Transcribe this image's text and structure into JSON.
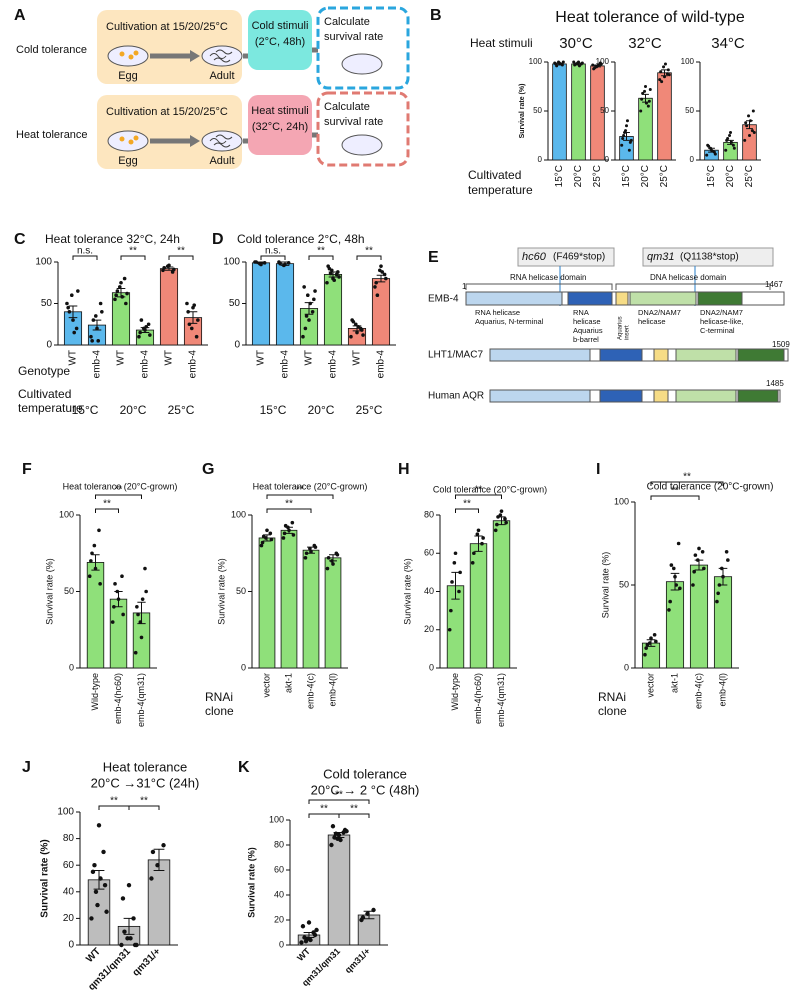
{
  "panel_a": {
    "letter": "A",
    "rows": [
      {
        "label": "Cold tolerance",
        "cultivation": "Cultivation at 15/20/25°C",
        "egg": "Egg",
        "adult": "Adult",
        "stimulus": [
          "Cold stimuli",
          "(2°C, 48h)"
        ],
        "result": [
          "Calculate",
          "survival rate"
        ]
      },
      {
        "label": "Heat tolerance",
        "cultivation": "Cultivation at 15/20/25°C",
        "egg": "Egg",
        "adult": "Adult",
        "stimulus": [
          "Heat stimuli",
          "(32°C, 24h)"
        ],
        "result": [
          "Calculate",
          "survival rate"
        ]
      }
    ]
  },
  "panel_b": {
    "letter": "B",
    "title": "Heat tolerance of wild-type",
    "row_label": "Heat stimuli",
    "x_label": [
      "Cultivated",
      "temperature"
    ]
  },
  "panel_e": {
    "letter": "E",
    "mutations": [
      {
        "allele": "hc60",
        "change": "(F469*stop)"
      },
      {
        "allele": "qm31",
        "change": "(Q1138*stop)"
      }
    ],
    "domains_header": [
      "RNA helicase domain",
      "DNA helicase domain"
    ],
    "proteins": [
      {
        "name": "EMB-4",
        "start": "1",
        "end": "1467"
      },
      {
        "name": "LHT1/MAC7",
        "end": "1509"
      },
      {
        "name": "Human AQR",
        "end": "1485"
      }
    ],
    "domain_labels": [
      [
        "RNA helicase",
        "Aquarius, N-terminal"
      ],
      [
        "RNA",
        "helicase",
        "Aquarius",
        "b-barrel"
      ],
      [
        "Aquarius",
        "insert"
      ],
      [
        "DNA2/NAM7",
        "helicase"
      ],
      [
        "DNA2/NAM7",
        "helicase-like,",
        "C-terminal"
      ]
    ]
  },
  "chart_data": [
    {
      "type": "bar",
      "title": "30°C",
      "ylabel": "Survival rate (%)",
      "categories": [
        "15°C",
        "20°C",
        "25°C"
      ],
      "colors": [
        "#5bb8ec",
        "#8fe07a",
        "#f08878"
      ],
      "values": [
        98,
        98,
        96
      ],
      "errors": [
        1,
        1,
        1
      ],
      "points": [
        [
          99,
          100,
          97,
          98,
          99,
          100,
          96,
          98
        ],
        [
          100,
          99,
          98,
          97,
          100,
          99,
          98,
          96
        ],
        [
          97,
          95,
          99,
          93,
          96,
          98,
          94,
          97
        ]
      ],
      "ylim": [
        0,
        100
      ],
      "yticks": [
        0,
        50,
        100
      ]
    },
    {
      "type": "bar",
      "title": "32°C",
      "categories": [
        "15°C",
        "20°C",
        "25°C"
      ],
      "colors": [
        "#5bb8ec",
        "#8fe07a",
        "#f08878"
      ],
      "values": [
        24,
        63,
        89
      ],
      "errors": [
        4,
        4,
        3
      ],
      "points": [
        [
          15,
          30,
          10,
          22,
          35,
          18,
          25,
          40,
          20,
          28
        ],
        [
          50,
          70,
          55,
          62,
          75,
          60,
          68,
          58,
          72
        ],
        [
          82,
          95,
          88,
          90,
          85,
          92,
          80,
          98,
          87
        ]
      ],
      "ylim": [
        0,
        100
      ],
      "yticks": [
        0,
        50,
        100
      ]
    },
    {
      "type": "bar",
      "title": "34°C",
      "categories": [
        "15°C",
        "20°C",
        "25°C"
      ],
      "colors": [
        "#5bb8ec",
        "#8fe07a",
        "#f08878"
      ],
      "values": [
        10,
        18,
        36
      ],
      "errors": [
        2,
        2,
        4
      ],
      "points": [
        [
          5,
          12,
          8,
          15,
          10,
          6,
          14,
          9
        ],
        [
          10,
          25,
          15,
          20,
          28,
          12,
          22,
          18
        ],
        [
          20,
          45,
          30,
          38,
          25,
          50,
          35,
          40,
          28
        ]
      ],
      "ylim": [
        0,
        100
      ],
      "yticks": [
        0,
        50,
        100
      ]
    },
    {
      "type": "bar",
      "letter": "C",
      "title": "Heat tolerance 32°C, 24h",
      "categories": [
        "WT",
        "emb-4",
        "WT",
        "emb-4",
        "WT",
        "emb-4"
      ],
      "colors": [
        "#5bb8ec",
        "#5bb8ec",
        "#8fe07a",
        "#8fe07a",
        "#f08878",
        "#f08878"
      ],
      "values": [
        40,
        24,
        63,
        18,
        92,
        33
      ],
      "errors": [
        7,
        6,
        5,
        3,
        2,
        7
      ],
      "points": [
        [
          50,
          60,
          20,
          45,
          30,
          65,
          40,
          15
        ],
        [
          10,
          35,
          50,
          5,
          20,
          40,
          30,
          5
        ],
        [
          55,
          70,
          80,
          60,
          75,
          50,
          65,
          58,
          62
        ],
        [
          10,
          20,
          25,
          15,
          18,
          12,
          30,
          22
        ],
        [
          90,
          95,
          88,
          93,
          96,
          91
        ],
        [
          50,
          20,
          10,
          40,
          45,
          30,
          25,
          48
        ]
      ],
      "ylim": [
        0,
        100
      ],
      "yticks": [
        0,
        50,
        100
      ],
      "sig": [
        {
          "span": [
            0,
            1
          ],
          "label": "n.s."
        },
        {
          "span": [
            2,
            3
          ],
          "label": "**"
        },
        {
          "span": [
            4,
            5
          ],
          "label": "**"
        }
      ],
      "groups": [
        {
          "label": "15°C",
          "span": [
            0,
            1
          ]
        },
        {
          "label": "20°C",
          "span": [
            2,
            3
          ]
        },
        {
          "label": "25°C",
          "span": [
            4,
            5
          ]
        }
      ],
      "row_labels": [
        "Genotype",
        "Cultivated",
        "temperature"
      ]
    },
    {
      "type": "bar",
      "letter": "D",
      "title": "Cold tolerance 2°C, 48h",
      "categories": [
        "WT",
        "emb-4",
        "WT",
        "emb-4",
        "WT",
        "emb-4"
      ],
      "colors": [
        "#5bb8ec",
        "#5bb8ec",
        "#8fe07a",
        "#8fe07a",
        "#f08878",
        "#f08878"
      ],
      "values": [
        99,
        98,
        44,
        85,
        20,
        80
      ],
      "errors": [
        1,
        2,
        7,
        3,
        3,
        4
      ],
      "points": [
        [
          100,
          98,
          99,
          100,
          97
        ],
        [
          100,
          96,
          99,
          98,
          97
        ],
        [
          10,
          60,
          40,
          70,
          30,
          55,
          20,
          50,
          65,
          35
        ],
        [
          75,
          90,
          85,
          95,
          80,
          88,
          92,
          78,
          82,
          86
        ],
        [
          10,
          25,
          20,
          30,
          15,
          18,
          28,
          22,
          12
        ],
        [
          70,
          90,
          85,
          75,
          95,
          80,
          60,
          88
        ]
      ],
      "ylim": [
        0,
        100
      ],
      "yticks": [
        0,
        50,
        100
      ],
      "sig": [
        {
          "span": [
            0,
            1
          ],
          "label": "n.s."
        },
        {
          "span": [
            2,
            3
          ],
          "label": "**"
        },
        {
          "span": [
            4,
            5
          ],
          "label": "**"
        }
      ],
      "groups": [
        {
          "label": "15°C",
          "span": [
            0,
            1
          ]
        },
        {
          "label": "20°C",
          "span": [
            2,
            3
          ]
        },
        {
          "label": "25°C",
          "span": [
            4,
            5
          ]
        }
      ]
    },
    {
      "type": "bar",
      "letter": "F",
      "title": "Heat tolerance (20°C-grown)",
      "ylabel": "Survival rate (%)",
      "categories": [
        "Wild-type",
        "emb-4(hc60)",
        "emb-4(qm31)"
      ],
      "colors": [
        "#8fe07a",
        "#8fe07a",
        "#8fe07a"
      ],
      "values": [
        69,
        45,
        36
      ],
      "errors": [
        5,
        5,
        7
      ],
      "points": [
        [
          60,
          80,
          90,
          70,
          65,
          55,
          75
        ],
        [
          30,
          50,
          60,
          40,
          45,
          35,
          55
        ],
        [
          10,
          30,
          65,
          40,
          20,
          50,
          35,
          45
        ]
      ],
      "ylim": [
        0,
        100
      ],
      "yticks": [
        0,
        50,
        100
      ],
      "sig": [
        {
          "span": [
            0,
            1
          ],
          "label": "**"
        },
        {
          "span": [
            0,
            2
          ],
          "label": "**"
        }
      ]
    },
    {
      "type": "bar",
      "letter": "G",
      "title": "Heat tolerance (20°C-grown)",
      "ylabel": "Survival rate (%)",
      "categories": [
        "vector",
        "akt-1",
        "emb-4(c)",
        "emb-4(l)"
      ],
      "colors": [
        "#8fe07a",
        "#8fe07a",
        "#8fe07a",
        "#8fe07a"
      ],
      "values": [
        85,
        90,
        77,
        72
      ],
      "errors": [
        2,
        2,
        2,
        2
      ],
      "points": [
        [
          80,
          85,
          88,
          82,
          90,
          84,
          86
        ],
        [
          85,
          92,
          95,
          88,
          90,
          87,
          93
        ],
        [
          72,
          78,
          80,
          75,
          76,
          79
        ],
        [
          65,
          70,
          75,
          72,
          68,
          74
        ]
      ],
      "ylim": [
        0,
        100
      ],
      "yticks": [
        0,
        50,
        100
      ],
      "sig": [
        {
          "span": [
            0,
            2
          ],
          "label": "**"
        },
        {
          "span": [
            0,
            3
          ],
          "label": "**"
        }
      ],
      "row_labels": [
        "RNAi",
        "clone"
      ]
    },
    {
      "type": "bar",
      "letter": "H",
      "title": "Cold tolerance (20°C-grown)",
      "ylabel": "Survival rate (%)",
      "categories": [
        "Wild-type",
        "emb-4(hc60)",
        "emb-4(qm31)"
      ],
      "colors": [
        "#8fe07a",
        "#8fe07a",
        "#8fe07a"
      ],
      "values": [
        43,
        65,
        77
      ],
      "errors": [
        7,
        4,
        2
      ],
      "points": [
        [
          20,
          55,
          40,
          30,
          60,
          50,
          45
        ],
        [
          55,
          70,
          65,
          60,
          72,
          68
        ],
        [
          72,
          80,
          78,
          75,
          82,
          76,
          79
        ]
      ],
      "ylim": [
        0,
        80
      ],
      "yticks": [
        0,
        20,
        40,
        60,
        80
      ],
      "sig": [
        {
          "span": [
            0,
            1
          ],
          "label": "**"
        },
        {
          "span": [
            0,
            2
          ],
          "label": "**"
        }
      ]
    },
    {
      "type": "bar",
      "letter": "I",
      "title": "Cold tolerance (20°C-grown)",
      "ylabel": "Survival rate (%)",
      "categories": [
        "vector",
        "akt-1",
        "emb-4(c)",
        "emb-4(l)"
      ],
      "colors": [
        "#8fe07a",
        "#8fe07a",
        "#8fe07a",
        "#8fe07a"
      ],
      "values": [
        15,
        52,
        62,
        55
      ],
      "errors": [
        2,
        5,
        3,
        5
      ],
      "points": [
        [
          8,
          15,
          20,
          12,
          18,
          16,
          14
        ],
        [
          35,
          60,
          75,
          40,
          55,
          48,
          62,
          50
        ],
        [
          50,
          65,
          70,
          58,
          72,
          60,
          68
        ],
        [
          40,
          60,
          70,
          45,
          55,
          65,
          50
        ]
      ],
      "ylim": [
        0,
        100
      ],
      "yticks": [
        0,
        50,
        100
      ],
      "sig": [
        {
          "span": [
            0,
            2
          ],
          "label": "**"
        },
        {
          "span": [
            0,
            3
          ],
          "label": "**"
        }
      ],
      "row_labels": [
        "RNAi",
        "clone"
      ]
    },
    {
      "type": "bar",
      "letter": "J",
      "title": "Heat tolerance",
      "subtitle": "20°C →31°C (24h)",
      "ylabel": "Survival rate (%)",
      "categories": [
        "WT",
        "qm31/qm31",
        "qm31/+"
      ],
      "colors": [
        "#bdbdbd",
        "#bdbdbd",
        "#bdbdbd"
      ],
      "values": [
        49,
        14,
        64
      ],
      "errors": [
        7,
        6,
        8
      ],
      "points": [
        [
          20,
          30,
          70,
          55,
          90,
          45,
          60,
          50,
          25,
          40
        ],
        [
          0,
          5,
          20,
          35,
          45,
          0,
          10,
          5,
          0
        ],
        [
          50,
          60,
          75,
          70
        ]
      ],
      "ylim": [
        0,
        100
      ],
      "yticks": [
        0,
        20,
        40,
        60,
        80,
        100
      ],
      "sig": [
        {
          "span": [
            0,
            1
          ],
          "label": "**"
        },
        {
          "span": [
            1,
            2
          ],
          "label": "**"
        }
      ]
    },
    {
      "type": "bar",
      "letter": "K",
      "title": "Cold tolerance",
      "subtitle": "20°C → 2 °C (48h)",
      "ylabel": "Survival rate (%)",
      "categories": [
        "WT",
        "qm31/qm31",
        "qm31/+"
      ],
      "colors": [
        "#bdbdbd",
        "#bdbdbd",
        "#bdbdbd"
      ],
      "values": [
        8,
        88,
        24
      ],
      "errors": [
        2,
        2,
        3
      ],
      "points": [
        [
          2,
          5,
          10,
          15,
          18,
          8,
          6,
          4,
          12,
          3
        ],
        [
          80,
          85,
          90,
          95,
          88,
          92,
          86,
          84,
          91,
          89
        ],
        [
          20,
          25,
          28,
          22
        ]
      ],
      "ylim": [
        0,
        100
      ],
      "yticks": [
        0,
        20,
        40,
        60,
        80,
        100
      ],
      "sig": [
        {
          "span": [
            0,
            1
          ],
          "label": "**"
        },
        {
          "span": [
            1,
            2
          ],
          "label": "**"
        },
        {
          "span": [
            0,
            2
          ],
          "label": "**"
        }
      ]
    }
  ]
}
